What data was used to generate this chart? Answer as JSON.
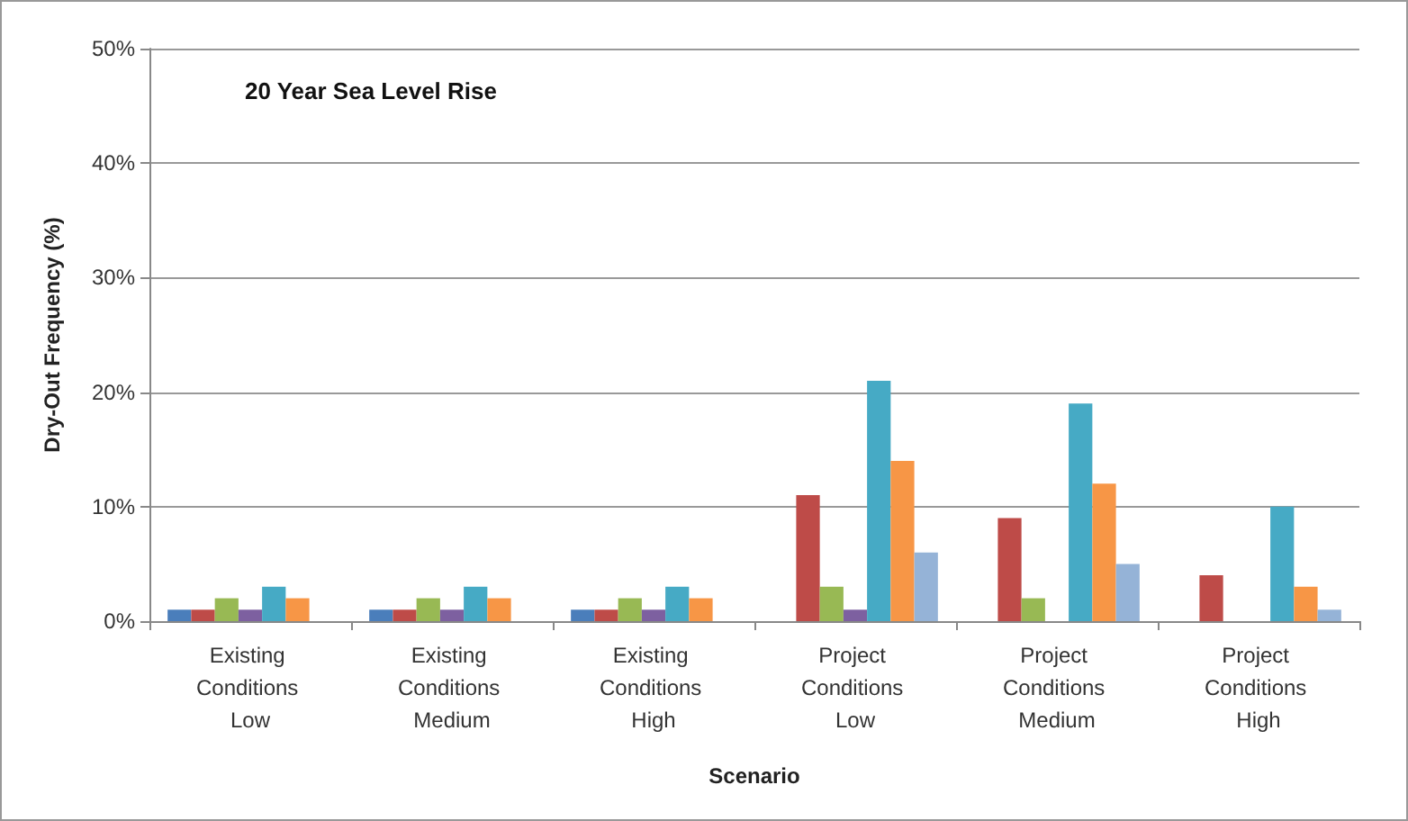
{
  "chart_data": {
    "type": "bar",
    "title": "20 Year Sea Level Rise",
    "xlabel": "Scenario",
    "ylabel": "Dry-Out Frequency (%)",
    "categories": [
      "Existing Conditions Low",
      "Existing Conditions Medium",
      "Existing Conditions High",
      "Project Conditions Low",
      "Project Conditions Medium",
      "Project Conditions High"
    ],
    "series": [
      {
        "color": "#4a7ebb",
        "values": [
          1,
          1,
          1,
          0,
          0,
          0
        ]
      },
      {
        "color": "#be4b48",
        "values": [
          1,
          1,
          1,
          11,
          9,
          4
        ]
      },
      {
        "color": "#98b954",
        "values": [
          2,
          2,
          2,
          3,
          2,
          0
        ]
      },
      {
        "color": "#7d60a0",
        "values": [
          1,
          1,
          1,
          1,
          0,
          0
        ]
      },
      {
        "color": "#46aac5",
        "values": [
          3,
          3,
          3,
          21,
          19,
          10
        ]
      },
      {
        "color": "#f79646",
        "values": [
          2,
          2,
          2,
          14,
          12,
          3
        ]
      },
      {
        "color": "#95b3d7",
        "values": [
          0,
          0,
          0,
          6,
          5,
          1
        ]
      }
    ],
    "ylim": [
      0,
      50
    ],
    "yticks": [
      {
        "value": 0,
        "label": "0%"
      },
      {
        "value": 10,
        "label": "10%"
      },
      {
        "value": 20,
        "label": "20%"
      },
      {
        "value": 30,
        "label": "30%"
      },
      {
        "value": 40,
        "label": "40%"
      },
      {
        "value": 50,
        "label": "50%"
      }
    ],
    "grid": "y"
  }
}
